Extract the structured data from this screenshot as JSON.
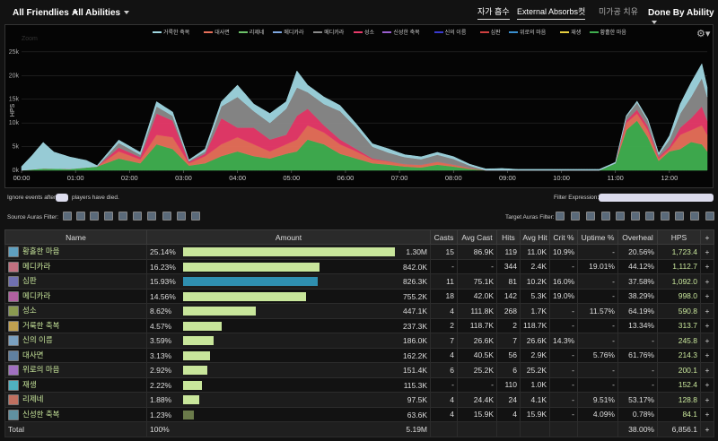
{
  "header": {
    "friendlies": "All Friendlies",
    "abilities": "All Abilities",
    "tabs": [
      {
        "label": "자가 흡수",
        "active": true
      },
      {
        "label": "External Absorbs",
        "active": true
      },
      {
        "label": "컷",
        "active": true
      },
      {
        "label": "미가공 치유",
        "active": false
      }
    ],
    "done_by": "Done By Ability"
  },
  "chart": {
    "ylabel": "HPS",
    "zoom": "Zoom",
    "legend": [
      {
        "label": "거룩한 축복",
        "color": "#9fd6e0"
      },
      {
        "label": "대사면",
        "color": "#e8705a"
      },
      {
        "label": "리제네",
        "color": "#6ec36a"
      },
      {
        "label": "메디카라",
        "color": "#7fa7e0"
      },
      {
        "label": "메디카라",
        "color": "#8a8a8a"
      },
      {
        "label": "성소",
        "color": "#e83a6a"
      },
      {
        "label": "신성한 축복",
        "color": "#9a5fd0"
      },
      {
        "label": "신의 이름",
        "color": "#3a3ad0"
      },
      {
        "label": "심판",
        "color": "#d04040"
      },
      {
        "label": "위로의 마음",
        "color": "#3a90d0"
      },
      {
        "label": "재생",
        "color": "#e8d040"
      },
      {
        "label": "황홀한 마음",
        "color": "#40b050"
      }
    ]
  },
  "chart_data": {
    "type": "area",
    "ylabel": "HPS",
    "x_ticks": [
      "00:00",
      "01:00",
      "02:00",
      "03:00",
      "04:00",
      "05:00",
      "06:00",
      "07:00",
      "08:00",
      "09:00",
      "10:00",
      "11:00",
      "12:00"
    ],
    "y_ticks": [
      "0k",
      "5k",
      "10k",
      "15k",
      "20k",
      "25k"
    ],
    "ylim": [
      0,
      28000
    ],
    "xlim": [
      0,
      12.7
    ],
    "series": [
      {
        "name": "황홀한 마음",
        "color": "#40b050",
        "x": [
          0,
          0.4,
          0.9,
          1.4,
          1.8,
          2.2,
          2.5,
          2.8,
          3.1,
          3.4,
          3.7,
          4.0,
          4.3,
          4.6,
          4.9,
          5.1,
          5.3,
          5.6,
          5.9,
          6.2,
          6.5,
          6.8,
          7.1,
          7.4,
          7.7,
          8.0,
          8.3,
          8.6,
          8.9,
          9.2,
          9.5,
          9.8,
          10.1,
          10.4,
          10.7,
          11.0,
          11.2,
          11.4,
          11.6,
          11.8,
          12.0,
          12.2,
          12.4,
          12.6,
          12.7
        ],
        "y": [
          0,
          400,
          300,
          800,
          2500,
          1500,
          5500,
          4500,
          1000,
          1500,
          3000,
          4000,
          3000,
          2500,
          3500,
          4000,
          6500,
          5500,
          3500,
          2500,
          1500,
          1200,
          800,
          600,
          1200,
          800,
          300,
          0,
          0,
          0,
          0,
          0,
          0,
          0,
          0,
          1500,
          8500,
          10500,
          7000,
          2000,
          4000,
          4500,
          6000,
          5500,
          4000
        ]
      },
      {
        "name": "대사면",
        "color": "#e8705a",
        "x": [
          0,
          1.4,
          1.8,
          2.2,
          2.5,
          2.8,
          3.1,
          3.4,
          3.7,
          4.0,
          4.3,
          4.6,
          4.9,
          5.1,
          5.3,
          5.6,
          5.9,
          6.2,
          6.5,
          7.1,
          7.7,
          8.3,
          8.6,
          11.0,
          11.2,
          11.4,
          11.6,
          11.8,
          12.0,
          12.2,
          12.4,
          12.6,
          12.7
        ],
        "y": [
          0,
          0,
          1500,
          800,
          2000,
          2500,
          500,
          1500,
          2500,
          3000,
          2500,
          1500,
          2000,
          2500,
          3000,
          2500,
          2000,
          1500,
          800,
          500,
          600,
          200,
          0,
          0,
          1500,
          1500,
          1500,
          500,
          500,
          3000,
          2500,
          4000,
          3500
        ]
      },
      {
        "name": "성소",
        "color": "#e83a6a",
        "x": [
          0,
          1.4,
          1.8,
          2.2,
          2.5,
          2.8,
          3.1,
          3.4,
          3.7,
          4.0,
          4.3,
          4.6,
          4.9,
          5.1,
          5.3,
          5.6,
          5.9,
          6.2,
          6.5,
          7.0,
          11.0,
          11.2,
          11.4,
          11.6,
          11.8,
          12.0,
          12.2,
          12.4,
          12.6,
          12.7
        ],
        "y": [
          0,
          0,
          800,
          500,
          4500,
          3500,
          300,
          500,
          5500,
          2000,
          3500,
          2500,
          2000,
          5000,
          3500,
          1500,
          1000,
          500,
          200,
          0,
          0,
          500,
          800,
          800,
          300,
          500,
          1500,
          2500,
          4000,
          3000
        ]
      },
      {
        "name": "메디카라",
        "color": "#8a8a8a",
        "x": [
          0,
          1.4,
          1.8,
          2.2,
          2.5,
          2.8,
          3.1,
          3.4,
          3.7,
          4.0,
          4.3,
          4.6,
          4.9,
          5.1,
          5.3,
          5.6,
          5.9,
          6.2,
          6.5,
          6.8,
          7.1,
          7.4,
          7.7,
          8.0,
          8.3,
          8.6,
          11.0,
          11.2,
          11.4,
          11.6,
          11.8,
          12.0,
          12.2,
          12.4,
          12.6,
          12.7
        ],
        "y": [
          0,
          0,
          1000,
          500,
          1500,
          1000,
          200,
          500,
          2500,
          6500,
          3500,
          3500,
          5500,
          6000,
          3500,
          4500,
          6000,
          4500,
          2500,
          1800,
          1500,
          1200,
          1500,
          1200,
          500,
          0,
          0,
          800,
          1500,
          1200,
          500,
          1500,
          3000,
          4500,
          6000,
          5000
        ]
      },
      {
        "name": "거룩한 축복",
        "color": "#9fd6e0",
        "x": [
          0,
          0.2,
          0.4,
          0.6,
          0.9,
          1.2,
          1.4,
          1.8,
          2.2,
          2.5,
          2.8,
          3.1,
          3.4,
          3.7,
          4.0,
          4.3,
          4.6,
          4.9,
          5.1,
          5.3,
          5.6,
          5.9,
          6.2,
          6.5,
          6.8,
          7.1,
          7.4,
          7.7,
          8.0,
          8.3,
          8.6,
          8.9,
          9.2,
          10.6,
          11.0,
          11.4,
          11.8,
          12.0,
          12.2,
          12.4,
          12.6,
          12.7
        ],
        "y": [
          800,
          3000,
          5500,
          3500,
          2500,
          1500,
          200,
          600,
          500,
          1000,
          800,
          200,
          500,
          1000,
          2500,
          1500,
          2000,
          1500,
          3500,
          1500,
          1500,
          1200,
          800,
          600,
          800,
          500,
          500,
          500,
          500,
          300,
          300,
          400,
          200,
          200,
          200,
          300,
          300,
          800,
          2000,
          3000,
          3000,
          2000
        ]
      }
    ]
  },
  "filters": {
    "ignore_prefix": "Ignore events after",
    "ignore_suffix": "players have died.",
    "expression": "Filter Expression:",
    "source_auras": "Source Auras Filter:",
    "target_auras": "Target Auras Filter:"
  },
  "table": {
    "columns": [
      "Name",
      "Amount",
      "Casts",
      "Avg Cast",
      "Hits",
      "Avg Hit",
      "Crit %",
      "Uptime %",
      "Overheal",
      "HPS",
      "+"
    ],
    "rows": [
      {
        "name": "황홀한 마음",
        "pct": "25.14%",
        "frac": 1.0,
        "amount": "1.30M",
        "casts": "15",
        "avg_cast": "86.9K",
        "hits": "119",
        "avg_hit": "11.0K",
        "crit": "10.9%",
        "uptime": "-",
        "overheal": "20.56%",
        "hps": "1,723.4",
        "bar": "#c8e69b",
        "icon": "#5fa0c0"
      },
      {
        "name": "메디카라",
        "pct": "16.23%",
        "frac": 0.646,
        "amount": "842.0K",
        "casts": "-",
        "avg_cast": "-",
        "hits": "344",
        "avg_hit": "2.4K",
        "crit": "-",
        "uptime": "19.01%",
        "overheal": "44.12%",
        "hps": "1,112.7",
        "bar": "#c8e69b",
        "icon": "#c07080"
      },
      {
        "name": "심판",
        "pct": "15.93%",
        "frac": 0.634,
        "amount": "826.3K",
        "casts": "11",
        "avg_cast": "75.1K",
        "hits": "81",
        "avg_hit": "10.2K",
        "crit": "16.0%",
        "uptime": "-",
        "overheal": "37.58%",
        "hps": "1,092.0",
        "bar": "#2f8fb0",
        "icon": "#7070b0"
      },
      {
        "name": "메디카라",
        "pct": "14.56%",
        "frac": 0.58,
        "amount": "755.2K",
        "casts": "18",
        "avg_cast": "42.0K",
        "hits": "142",
        "avg_hit": "5.3K",
        "crit": "19.0%",
        "uptime": "-",
        "overheal": "38.29%",
        "hps": "998.0",
        "bar": "#c8e69b",
        "icon": "#b060a0"
      },
      {
        "name": "성소",
        "pct": "8.62%",
        "frac": 0.343,
        "amount": "447.1K",
        "casts": "4",
        "avg_cast": "111.8K",
        "hits": "268",
        "avg_hit": "1.7K",
        "crit": "-",
        "uptime": "11.57%",
        "overheal": "64.19%",
        "hps": "590.8",
        "bar": "#c8e69b",
        "icon": "#8a9a50"
      },
      {
        "name": "거룩한 축복",
        "pct": "4.57%",
        "frac": 0.182,
        "amount": "237.3K",
        "casts": "2",
        "avg_cast": "118.7K",
        "hits": "2",
        "avg_hit": "118.7K",
        "crit": "-",
        "uptime": "-",
        "overheal": "13.34%",
        "hps": "313.7",
        "bar": "#c8e69b",
        "icon": "#c0a050"
      },
      {
        "name": "신의 이름",
        "pct": "3.59%",
        "frac": 0.143,
        "amount": "186.0K",
        "casts": "7",
        "avg_cast": "26.6K",
        "hits": "7",
        "avg_hit": "26.6K",
        "crit": "14.3%",
        "uptime": "-",
        "overheal": "-",
        "hps": "245.8",
        "bar": "#c8e69b",
        "icon": "#7aa0c0"
      },
      {
        "name": "대사면",
        "pct": "3.13%",
        "frac": 0.125,
        "amount": "162.2K",
        "casts": "4",
        "avg_cast": "40.5K",
        "hits": "56",
        "avg_hit": "2.9K",
        "crit": "-",
        "uptime": "5.76%",
        "overheal": "61.76%",
        "hps": "214.3",
        "bar": "#c8e69b",
        "icon": "#6080a0"
      },
      {
        "name": "위로의 마음",
        "pct": "2.92%",
        "frac": 0.116,
        "amount": "151.4K",
        "casts": "6",
        "avg_cast": "25.2K",
        "hits": "6",
        "avg_hit": "25.2K",
        "crit": "-",
        "uptime": "-",
        "overheal": "-",
        "hps": "200.1",
        "bar": "#c8e69b",
        "icon": "#a070c0"
      },
      {
        "name": "재생",
        "pct": "2.22%",
        "frac": 0.088,
        "amount": "115.3K",
        "casts": "-",
        "avg_cast": "-",
        "hits": "110",
        "avg_hit": "1.0K",
        "crit": "-",
        "uptime": "-",
        "overheal": "-",
        "hps": "152.4",
        "bar": "#c8e69b",
        "icon": "#50b0c0"
      },
      {
        "name": "리제네",
        "pct": "1.88%",
        "frac": 0.075,
        "amount": "97.5K",
        "casts": "4",
        "avg_cast": "24.4K",
        "hits": "24",
        "avg_hit": "4.1K",
        "crit": "-",
        "uptime": "9.51%",
        "overheal": "53.17%",
        "hps": "128.8",
        "bar": "#c8e69b",
        "icon": "#c07060"
      },
      {
        "name": "신성한 축복",
        "pct": "1.23%",
        "frac": 0.049,
        "amount": "63.6K",
        "casts": "4",
        "avg_cast": "15.9K",
        "hits": "4",
        "avg_hit": "15.9K",
        "crit": "-",
        "uptime": "4.09%",
        "overheal": "0.78%",
        "hps": "84.1",
        "bar": "#6a7a4a",
        "icon": "#6090a0"
      }
    ],
    "total": {
      "label": "Total",
      "pct": "100%",
      "amount": "5.19M",
      "overheal": "38.00%",
      "hps": "6,856.1"
    }
  }
}
